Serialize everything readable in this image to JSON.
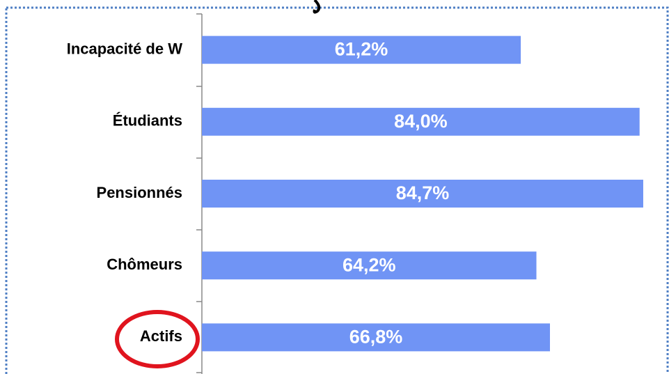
{
  "chart_data": {
    "type": "bar",
    "orientation": "horizontal",
    "categories": [
      "Incapacité de W",
      "Étudiants",
      "Pensionnés",
      "Chômeurs",
      "Actifs"
    ],
    "values": [
      61.2,
      84.0,
      84.7,
      64.2,
      66.8
    ],
    "value_labels": [
      "61,2%",
      "84,0%",
      "84,7%",
      "64,2%",
      "66,8%"
    ],
    "color": "#7094f5"
  }
}
